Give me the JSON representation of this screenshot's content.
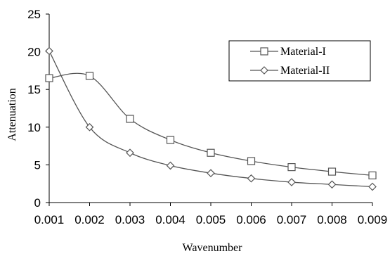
{
  "chart_data": {
    "type": "line",
    "xlabel": "Wavenumber",
    "ylabel": "Attenuation",
    "x": [
      0.001,
      0.002,
      0.003,
      0.004,
      0.005,
      0.006,
      0.007,
      0.008,
      0.009
    ],
    "x_tick_labels": [
      "0.001",
      "0.002",
      "0.003",
      "0.004",
      "0.005",
      "0.006",
      "0.007",
      "0.008",
      "0.009"
    ],
    "ylim": [
      0,
      25
    ],
    "y_ticks": [
      0,
      5,
      10,
      15,
      20,
      25
    ],
    "y_tick_labels": [
      "0",
      "5",
      "10",
      "15",
      "20",
      "25"
    ],
    "grid": false,
    "legend_position": "top-right",
    "line_color": "#555555",
    "series": [
      {
        "name": "Material-I",
        "marker": "square",
        "values": [
          16.5,
          16.8,
          11.1,
          8.3,
          6.6,
          5.5,
          4.7,
          4.1,
          3.6
        ]
      },
      {
        "name": "Material-II",
        "marker": "diamond",
        "values": [
          20.1,
          10.0,
          6.6,
          4.9,
          3.9,
          3.2,
          2.7,
          2.4,
          2.1
        ]
      }
    ]
  }
}
